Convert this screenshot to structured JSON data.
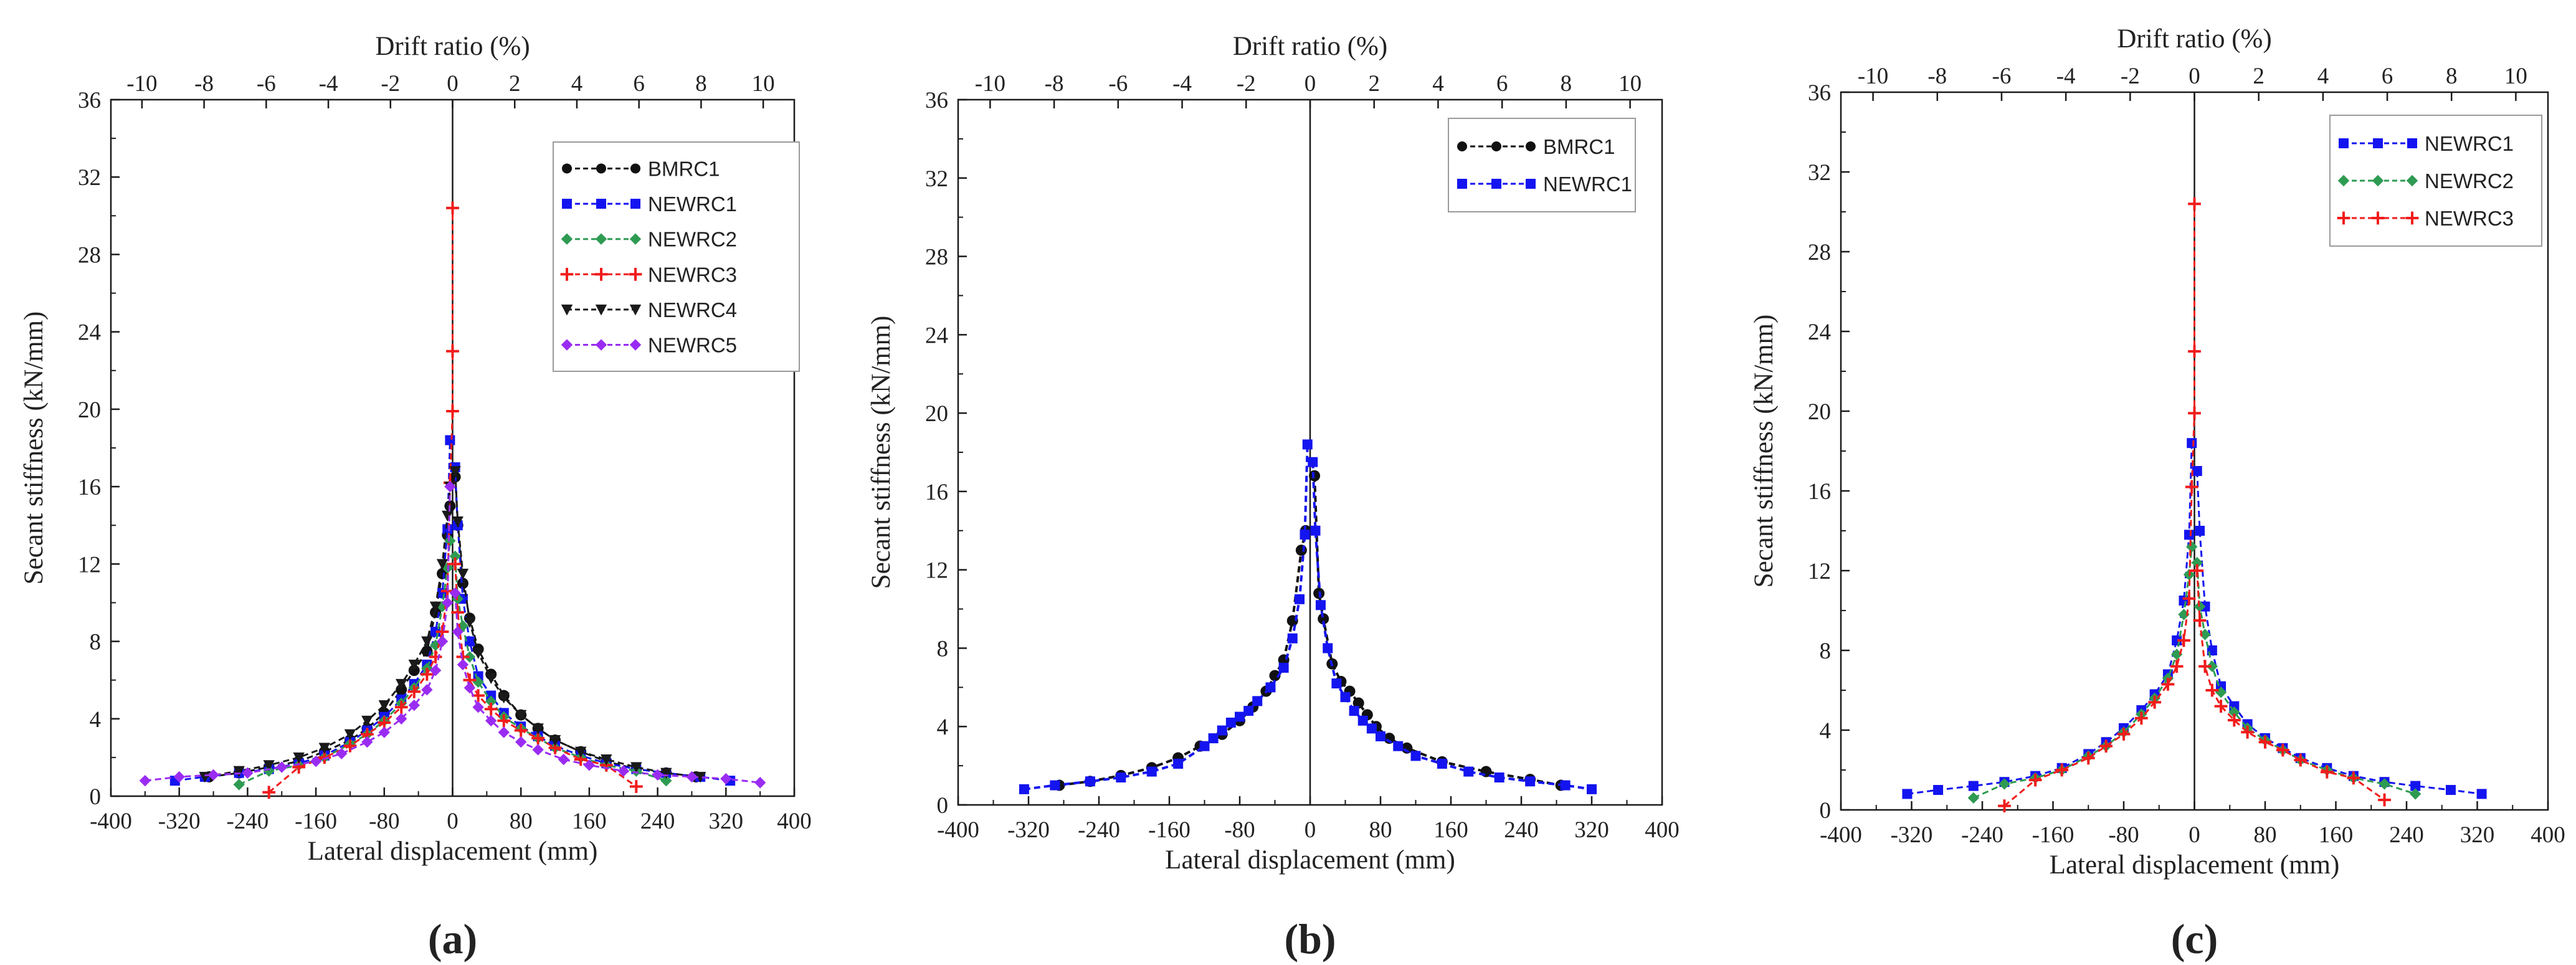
{
  "colors": {
    "axis": "#1a1a1a",
    "BMRC1": "#111111",
    "NEWRC1": "#1414f0",
    "NEWRC2": "#2e9b52",
    "NEWRC3": "#f01c1c",
    "NEWRC4": "#1a1a1a",
    "NEWRC5": "#9a2cf2"
  },
  "chart_data": [
    {
      "panel_label": "(a)",
      "type": "scatter",
      "title": "",
      "xlabel": "Lateral displacement (mm)",
      "ylabel": "Secant stiffness (kN/mm)",
      "top_xlabel": "Drift ratio (%)",
      "xlim": [
        -400,
        400
      ],
      "ylim": [
        0,
        36
      ],
      "top_xlim": [
        -11,
        11
      ],
      "xticks": [
        "-400",
        "-320",
        "-240",
        "-160",
        "-80",
        "0",
        "80",
        "160",
        "240",
        "320",
        "400"
      ],
      "yticks": [
        "0",
        "4",
        "8",
        "12",
        "16",
        "20",
        "24",
        "28",
        "32",
        "36"
      ],
      "top_xticks": [
        "-10",
        "-8",
        "-6",
        "-4",
        "-2",
        "0",
        "2",
        "4",
        "6",
        "8",
        "10"
      ],
      "legend_position": "top-right",
      "series": [
        {
          "name": "BMRC1",
          "marker": "circle",
          "x": [
            -285,
            -250,
            -215,
            -180,
            -150,
            -120,
            -100,
            -80,
            -60,
            -45,
            -30,
            -20,
            -12,
            -6,
            -3,
            3,
            6,
            12,
            20,
            30,
            45,
            60,
            80,
            100,
            120,
            150,
            180,
            215,
            250,
            285
          ],
          "y": [
            1.0,
            1.2,
            1.5,
            1.8,
            2.3,
            2.9,
            3.5,
            4.3,
            5.5,
            6.5,
            7.5,
            9.5,
            11.5,
            13.5,
            15.0,
            16.5,
            14.0,
            11.0,
            9.2,
            7.6,
            6.3,
            5.2,
            4.2,
            3.5,
            2.9,
            2.3,
            1.8,
            1.4,
            1.2,
            1.0
          ]
        },
        {
          "name": "NEWRC1",
          "marker": "square",
          "x": [
            -325,
            -290,
            -250,
            -215,
            -180,
            -150,
            -120,
            -100,
            -80,
            -60,
            -45,
            -30,
            -20,
            -12,
            -6,
            -3,
            3,
            6,
            12,
            20,
            30,
            45,
            60,
            80,
            100,
            120,
            150,
            180,
            215,
            250,
            290,
            325
          ],
          "y": [
            0.8,
            1.0,
            1.2,
            1.4,
            1.7,
            2.1,
            2.8,
            3.4,
            4.1,
            5.0,
            5.8,
            6.8,
            8.5,
            10.5,
            13.8,
            18.4,
            17.0,
            14.0,
            10.2,
            8.0,
            6.2,
            5.2,
            4.3,
            3.6,
            3.1,
            2.6,
            2.1,
            1.7,
            1.4,
            1.2,
            1.0,
            0.8
          ]
        },
        {
          "name": "NEWRC2",
          "marker": "diamond",
          "x": [
            -250,
            -215,
            -180,
            -150,
            -120,
            -100,
            -80,
            -60,
            -45,
            -30,
            -20,
            -12,
            -6,
            -3,
            3,
            6,
            12,
            20,
            30,
            45,
            60,
            80,
            100,
            120,
            150,
            180,
            215,
            250
          ],
          "y": [
            0.6,
            1.3,
            1.6,
            2.0,
            2.7,
            3.2,
            3.9,
            4.8,
            5.6,
            6.6,
            7.8,
            9.8,
            11.8,
            13.2,
            12.4,
            10.2,
            8.8,
            7.2,
            5.9,
            4.9,
            4.1,
            3.5,
            3.0,
            2.5,
            2.0,
            1.6,
            1.3,
            0.8
          ]
        },
        {
          "name": "NEWRC3",
          "marker": "plus",
          "x": [
            -215,
            -180,
            -150,
            -120,
            -100,
            -80,
            -60,
            -45,
            -30,
            -20,
            -12,
            -6,
            -3,
            0,
            0,
            0,
            3,
            6,
            12,
            20,
            30,
            45,
            60,
            80,
            100,
            120,
            150,
            180,
            215
          ],
          "y": [
            0.2,
            1.5,
            2.0,
            2.6,
            3.2,
            3.8,
            4.6,
            5.4,
            6.3,
            7.2,
            8.5,
            10.6,
            16.2,
            19.9,
            23.0,
            30.4,
            12.0,
            9.5,
            7.2,
            6.0,
            5.2,
            4.5,
            3.9,
            3.4,
            3.0,
            2.5,
            1.9,
            1.6,
            0.5
          ]
        },
        {
          "name": "NEWRC4",
          "marker": "triangle-down",
          "x": [
            -290,
            -250,
            -215,
            -180,
            -150,
            -120,
            -100,
            -80,
            -60,
            -45,
            -30,
            -20,
            -12,
            -6,
            -3,
            3,
            6,
            12,
            20,
            30,
            45,
            60,
            80,
            100,
            120,
            150,
            180,
            215,
            250,
            290
          ],
          "y": [
            1.0,
            1.3,
            1.6,
            2.0,
            2.5,
            3.2,
            3.9,
            4.7,
            5.8,
            6.8,
            8.0,
            9.8,
            12.0,
            14.5,
            16.0,
            16.8,
            14.2,
            11.5,
            9.0,
            7.4,
            6.1,
            5.1,
            4.2,
            3.5,
            2.9,
            2.3,
            1.9,
            1.5,
            1.2,
            1.0
          ]
        },
        {
          "name": "NEWRC5",
          "marker": "diamond",
          "x": [
            -360,
            -320,
            -280,
            -240,
            -200,
            -160,
            -130,
            -100,
            -80,
            -60,
            -45,
            -30,
            -20,
            -12,
            -6,
            -3,
            3,
            6,
            12,
            20,
            30,
            45,
            60,
            80,
            100,
            130,
            160,
            200,
            240,
            280,
            320,
            360
          ],
          "y": [
            0.8,
            1.0,
            1.1,
            1.2,
            1.5,
            1.8,
            2.2,
            2.8,
            3.3,
            4.0,
            4.7,
            5.5,
            6.5,
            8.0,
            10.0,
            16.0,
            10.5,
            8.5,
            6.8,
            5.6,
            4.6,
            3.9,
            3.3,
            2.8,
            2.4,
            1.9,
            1.6,
            1.3,
            1.1,
            1.0,
            0.9,
            0.7
          ]
        }
      ]
    },
    {
      "panel_label": "(b)",
      "type": "scatter",
      "title": "",
      "xlabel": "Lateral displacement (mm)",
      "ylabel": "Secant stiffness (kN/mm)",
      "top_xlabel": "Drift ratio (%)",
      "xlim": [
        -400,
        400
      ],
      "ylim": [
        0,
        36
      ],
      "top_xlim": [
        -11,
        11
      ],
      "xticks": [
        "-400",
        "-320",
        "-240",
        "-160",
        "-80",
        "0",
        "80",
        "160",
        "240",
        "320",
        "400"
      ],
      "yticks": [
        "0",
        "4",
        "8",
        "12",
        "16",
        "20",
        "24",
        "28",
        "32",
        "36"
      ],
      "top_xticks": [
        "-10",
        "-8",
        "-6",
        "-4",
        "-2",
        "0",
        "2",
        "4",
        "6",
        "8",
        "10"
      ],
      "legend_position": "top-right",
      "series": [
        {
          "name": "BMRC1",
          "marker": "circle",
          "x": [
            -285,
            -250,
            -215,
            -180,
            -150,
            -125,
            -100,
            -80,
            -65,
            -50,
            -40,
            -30,
            -20,
            -10,
            -5,
            5,
            10,
            15,
            25,
            35,
            45,
            55,
            65,
            75,
            90,
            110,
            150,
            200,
            250,
            285
          ],
          "y": [
            1.0,
            1.2,
            1.5,
            1.9,
            2.4,
            3.0,
            3.6,
            4.3,
            5.0,
            5.8,
            6.6,
            7.4,
            9.4,
            13.0,
            14.0,
            16.8,
            10.8,
            9.5,
            7.2,
            6.3,
            5.8,
            5.2,
            4.6,
            4.0,
            3.4,
            2.9,
            2.2,
            1.7,
            1.3,
            1.0
          ]
        },
        {
          "name": "NEWRC1",
          "marker": "square",
          "x": [
            -325,
            -290,
            -250,
            -215,
            -180,
            -150,
            -120,
            -110,
            -100,
            -90,
            -80,
            -70,
            -60,
            -45,
            -30,
            -20,
            -12,
            -6,
            -3,
            3,
            6,
            12,
            20,
            30,
            40,
            50,
            60,
            70,
            80,
            100,
            120,
            150,
            180,
            215,
            250,
            290,
            320
          ],
          "y": [
            0.8,
            1.0,
            1.2,
            1.4,
            1.7,
            2.1,
            3.0,
            3.4,
            3.8,
            4.2,
            4.5,
            4.8,
            5.3,
            6.0,
            7.0,
            8.5,
            10.5,
            13.8,
            18.4,
            17.5,
            14.0,
            10.2,
            8.0,
            6.2,
            5.5,
            4.8,
            4.3,
            3.9,
            3.5,
            3.0,
            2.5,
            2.1,
            1.7,
            1.4,
            1.2,
            1.0,
            0.8
          ]
        }
      ]
    },
    {
      "panel_label": "(c)",
      "type": "scatter",
      "title": "",
      "xlabel": "Lateral displacement (mm)",
      "ylabel": "Secant stiffness (kN/mm)",
      "top_xlabel": "Drift ratio (%)",
      "xlim": [
        -400,
        400
      ],
      "ylim": [
        0,
        36
      ],
      "top_xlim": [
        -11,
        11
      ],
      "xticks": [
        "-400",
        "-320",
        "-240",
        "-160",
        "-80",
        "0",
        "80",
        "160",
        "240",
        "320",
        "400"
      ],
      "yticks": [
        "0",
        "4",
        "8",
        "12",
        "16",
        "20",
        "24",
        "28",
        "32",
        "36"
      ],
      "top_xticks": [
        "-10",
        "-8",
        "-6",
        "-4",
        "-2",
        "0",
        "2",
        "4",
        "6",
        "8",
        "10"
      ],
      "legend_position": "top-right",
      "series": [
        {
          "name": "NEWRC1",
          "marker": "square",
          "x": [
            -325,
            -290,
            -250,
            -215,
            -180,
            -150,
            -120,
            -100,
            -80,
            -60,
            -45,
            -30,
            -20,
            -12,
            -6,
            -3,
            3,
            6,
            12,
            20,
            30,
            45,
            60,
            80,
            100,
            120,
            150,
            180,
            215,
            250,
            290,
            325
          ],
          "y": [
            0.8,
            1.0,
            1.2,
            1.4,
            1.7,
            2.1,
            2.8,
            3.4,
            4.1,
            5.0,
            5.8,
            6.8,
            8.5,
            10.5,
            13.8,
            18.4,
            17.0,
            14.0,
            10.2,
            8.0,
            6.2,
            5.2,
            4.3,
            3.6,
            3.1,
            2.6,
            2.1,
            1.7,
            1.4,
            1.2,
            1.0,
            0.8
          ]
        },
        {
          "name": "NEWRC2",
          "marker": "diamond",
          "x": [
            -250,
            -215,
            -180,
            -150,
            -120,
            -100,
            -80,
            -60,
            -45,
            -30,
            -20,
            -12,
            -6,
            -3,
            3,
            6,
            12,
            20,
            30,
            45,
            60,
            80,
            100,
            120,
            150,
            180,
            215,
            250
          ],
          "y": [
            0.6,
            1.3,
            1.6,
            2.0,
            2.7,
            3.2,
            3.9,
            4.8,
            5.6,
            6.6,
            7.8,
            9.8,
            11.8,
            13.2,
            12.4,
            10.2,
            8.8,
            7.2,
            5.9,
            4.9,
            4.1,
            3.5,
            3.0,
            2.5,
            2.0,
            1.6,
            1.3,
            0.8
          ]
        },
        {
          "name": "NEWRC3",
          "marker": "plus",
          "x": [
            -215,
            -180,
            -150,
            -120,
            -100,
            -80,
            -60,
            -45,
            -30,
            -20,
            -12,
            -6,
            -3,
            0,
            0,
            0,
            3,
            6,
            12,
            20,
            30,
            45,
            60,
            80,
            100,
            120,
            150,
            180,
            215
          ],
          "y": [
            0.2,
            1.5,
            2.0,
            2.6,
            3.2,
            3.8,
            4.6,
            5.4,
            6.3,
            7.2,
            8.5,
            10.6,
            16.2,
            19.9,
            23.0,
            30.4,
            12.0,
            9.5,
            7.2,
            6.0,
            5.2,
            4.5,
            3.9,
            3.4,
            3.0,
            2.5,
            1.9,
            1.6,
            0.5
          ]
        }
      ]
    }
  ]
}
